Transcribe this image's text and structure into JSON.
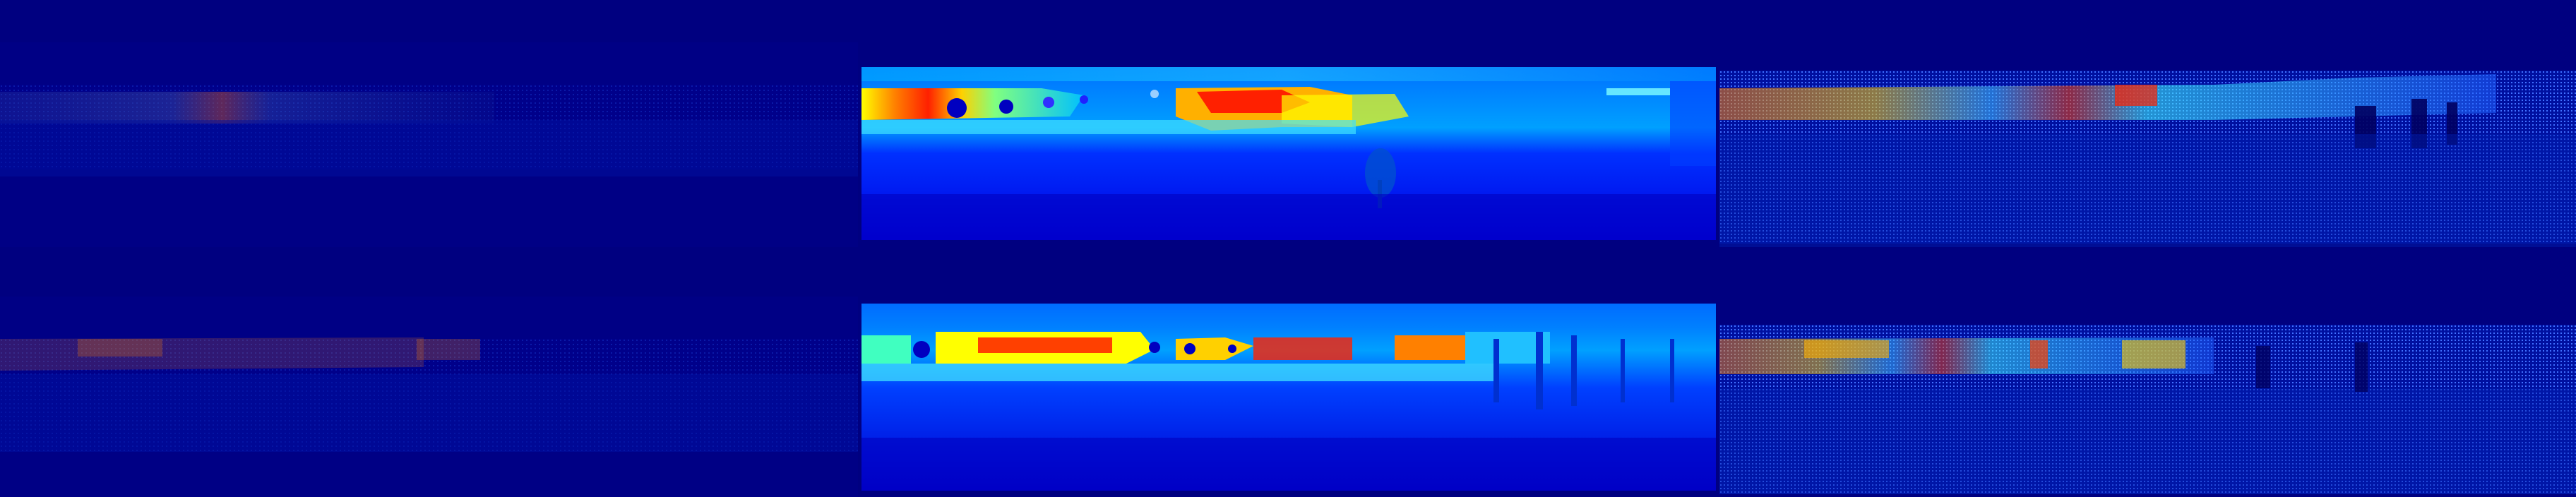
{
  "figure": {
    "colormap": "jet",
    "background_color": "#000080",
    "rows": [
      {
        "row": 1,
        "panels": [
          {
            "column": 1,
            "kind": "sparse-depth-input",
            "intensity": "very-dim",
            "hot_region": "left-center"
          },
          {
            "column": 2,
            "kind": "dense-depth-prediction",
            "intensity": "bright",
            "hot_region": "left-and-center"
          },
          {
            "column": 3,
            "kind": "depth-ground-truth-points",
            "intensity": "medium",
            "hot_region": "left-center"
          }
        ]
      },
      {
        "row": 2,
        "panels": [
          {
            "column": 1,
            "kind": "sparse-depth-input",
            "intensity": "very-dim",
            "hot_region": "left"
          },
          {
            "column": 2,
            "kind": "dense-depth-prediction",
            "intensity": "bright",
            "hot_region": "left-and-center"
          },
          {
            "column": 3,
            "kind": "depth-ground-truth-points",
            "intensity": "medium",
            "hot_region": "left-and-center"
          }
        ]
      }
    ],
    "colors": {
      "deep": "#00008b",
      "blue": "#0000ff",
      "sky": "#0080ff",
      "cyan": "#00ffff",
      "yellow": "#ffff00",
      "orange": "#ff8000",
      "red": "#ff0000",
      "dark_red": "#800000"
    }
  }
}
